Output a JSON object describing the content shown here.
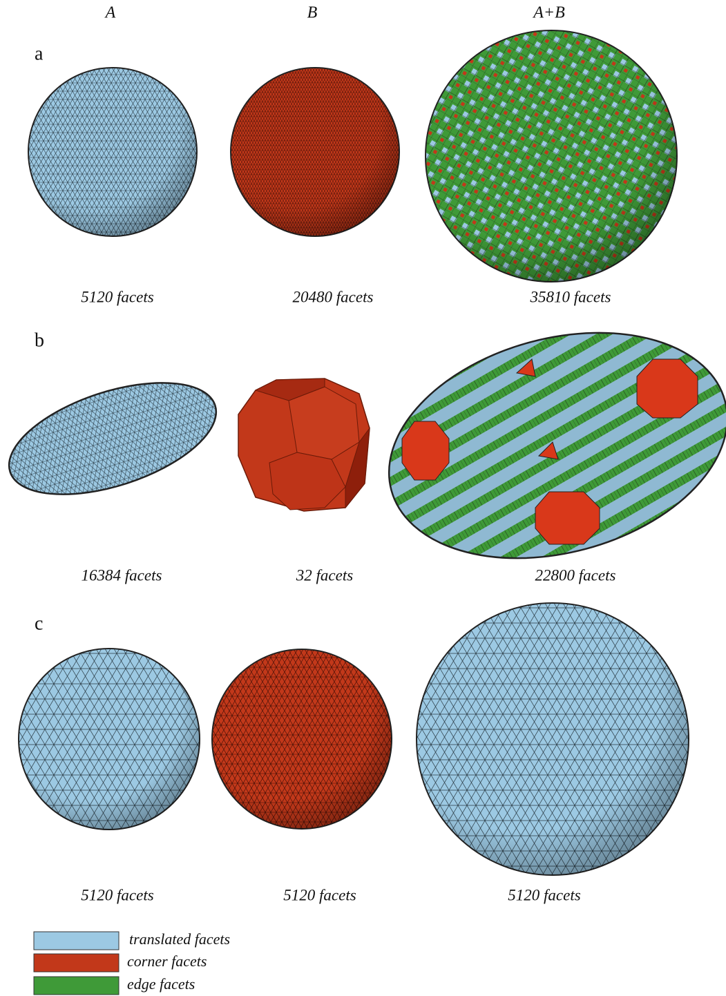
{
  "columns": [
    "A",
    "B",
    "A+B"
  ],
  "rows": [
    {
      "label": "a",
      "captions": [
        "5120 facets",
        "20480 facets",
        "35810 facets"
      ]
    },
    {
      "label": "b",
      "captions": [
        "16384 facets",
        "32 facets",
        "22800 facets"
      ]
    },
    {
      "label": "c",
      "captions": [
        "5120 facets",
        "5120 facets",
        "5120 facets"
      ]
    }
  ],
  "legend": [
    {
      "label": "translated facets"
    },
    {
      "label": "corner facets"
    },
    {
      "label": "edge facets"
    }
  ]
}
